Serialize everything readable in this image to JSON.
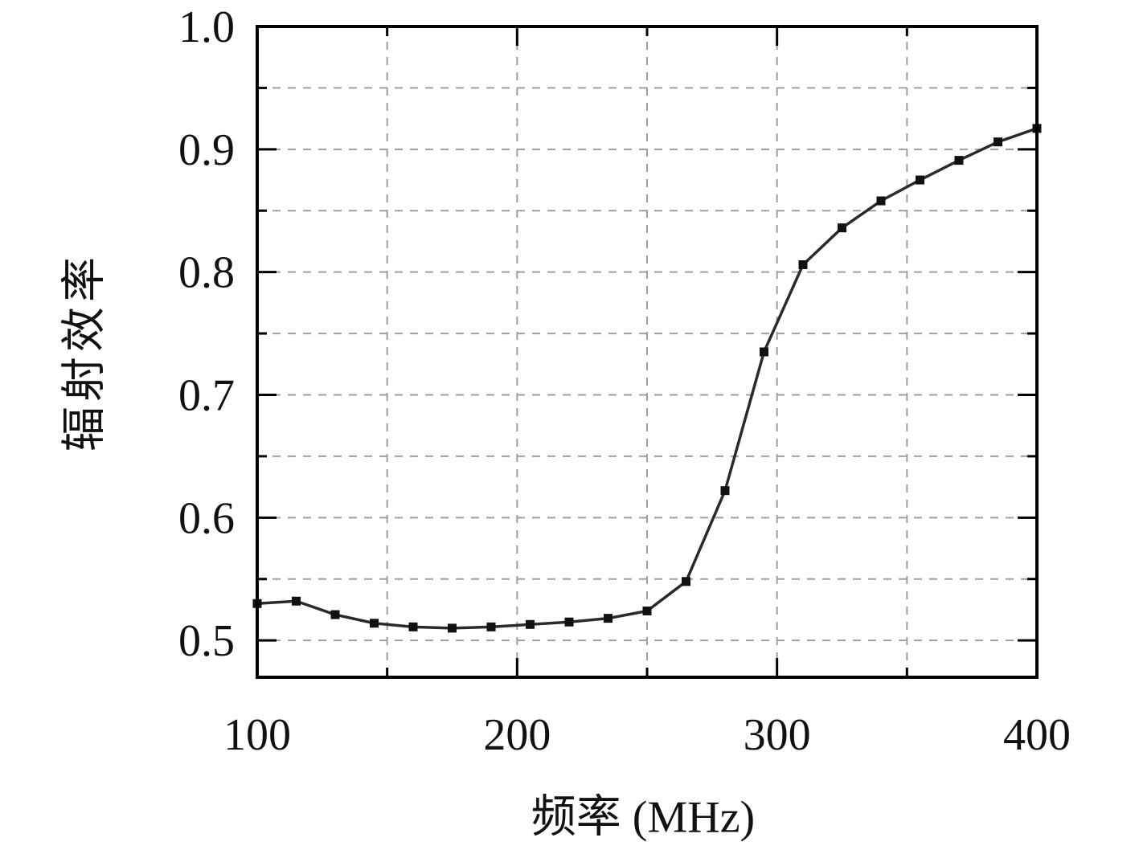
{
  "chart_data": {
    "type": "line",
    "title": "",
    "xlabel": "频率 (MHz)",
    "ylabel": "辐射效率",
    "x": [
      100,
      115,
      130,
      145,
      160,
      175,
      190,
      205,
      220,
      235,
      250,
      265,
      280,
      295,
      310,
      325,
      340,
      355,
      370,
      385,
      400
    ],
    "series": [
      {
        "name": "radiation-efficiency",
        "values": [
          0.53,
          0.532,
          0.521,
          0.514,
          0.511,
          0.51,
          0.511,
          0.513,
          0.515,
          0.518,
          0.524,
          0.548,
          0.622,
          0.735,
          0.806,
          0.836,
          0.858,
          0.875,
          0.891,
          0.906,
          0.917
        ]
      }
    ],
    "xlim": [
      100,
      400
    ],
    "ylim": [
      0.47,
      1.0
    ],
    "x_major_ticks": [
      100,
      200,
      300,
      400
    ],
    "x_grid_step": 50,
    "y_major_ticks": [
      0.5,
      0.6,
      0.7,
      0.8,
      0.9,
      1.0
    ],
    "y_grid_start": 0.5,
    "y_grid_step": 0.05,
    "grid": true,
    "legend": "none",
    "marker": "square",
    "colors": {
      "line": "#2a2a2a",
      "marker": "#111111",
      "grid": "#9f9f9f",
      "frame": "#000000",
      "text": "#111111",
      "background": "#ffffff"
    }
  }
}
